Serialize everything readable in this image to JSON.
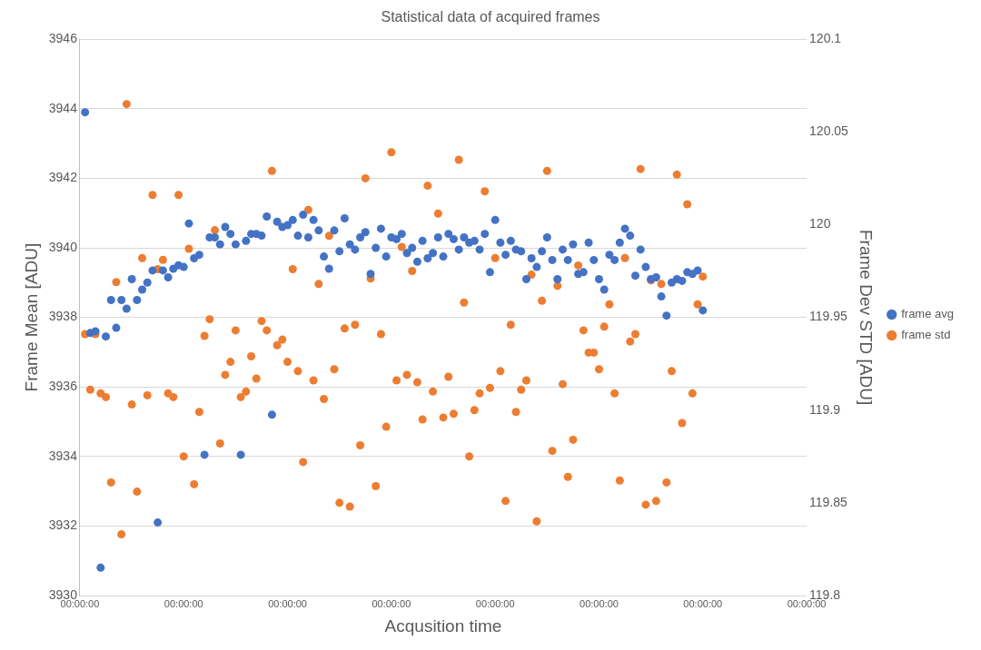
{
  "chart_data": {
    "type": "scatter",
    "title": "Statistical data of acquired frames",
    "xlabel": "Acqusition time",
    "ylabel": "Frame Mean [ADU]",
    "y2label": "Frame Dev STD [ADU]",
    "categories": [
      "00:00:00",
      null,
      null,
      null,
      null,
      null,
      null,
      null,
      null,
      null,
      null,
      null,
      null,
      null,
      null,
      null,
      null,
      null,
      null,
      null,
      "00:00:00",
      null,
      null,
      null,
      null,
      null,
      null,
      null,
      null,
      null,
      null,
      null,
      null,
      null,
      null,
      null,
      null,
      null,
      null,
      null,
      "00:00:00",
      null,
      null,
      null,
      null,
      null,
      null,
      null,
      null,
      null,
      null,
      null,
      null,
      null,
      null,
      null,
      null,
      null,
      null,
      null,
      "00:00:00",
      null,
      null,
      null,
      null,
      null,
      null,
      null,
      null,
      null,
      null,
      null,
      null,
      null,
      null,
      null,
      null,
      null,
      null,
      null,
      "00:00:00",
      null,
      null,
      null,
      null,
      null,
      null,
      null,
      null,
      null,
      null,
      null,
      null,
      null,
      null,
      null,
      null,
      null,
      null,
      null,
      "00:00:00",
      null,
      null,
      null,
      null,
      null,
      null,
      null,
      null,
      null,
      null,
      null,
      null,
      null,
      null,
      null,
      null,
      null,
      null,
      null,
      "00:00:00",
      null,
      null,
      null,
      null,
      null,
      null,
      null,
      null,
      null,
      null,
      null,
      null,
      null,
      null,
      null,
      null,
      null,
      null,
      null,
      "00:00:00"
    ],
    "series": [
      {
        "name": "frame avg",
        "color": "#4472c4",
        "values": [
          null,
          3943.9,
          3937.55,
          3937.6,
          3930.8,
          3937.45,
          3938.5,
          3937.7,
          3938.5,
          3938.25,
          3939.1,
          3938.5,
          3938.8,
          3939.0,
          3939.35,
          3932.1,
          3939.35,
          3939.15,
          3939.4,
          3939.5,
          3939.45,
          3940.7,
          3939.7,
          3939.8,
          3934.05,
          3940.3,
          3940.3,
          3940.1,
          3940.6,
          3940.4,
          3940.1,
          3934.05,
          3940.2,
          3940.4,
          3940.4,
          3940.35,
          3940.9,
          3935.2,
          3940.75,
          3940.6,
          3940.65,
          3940.8,
          3940.35,
          3940.95,
          3940.3,
          3940.8,
          3940.5,
          3939.75,
          3939.4,
          3940.5,
          3939.9,
          3940.85,
          3940.1,
          3939.95,
          3940.3,
          3940.45,
          3939.25,
          3940.0,
          3940.55,
          3939.75,
          3940.3,
          3940.25,
          3940.4,
          3939.85,
          3940.0,
          3939.6,
          3940.2,
          3939.7,
          3939.85,
          3940.3,
          3939.75,
          3940.4,
          3940.25,
          3939.95,
          3940.3,
          3940.15,
          3940.2,
          3939.95,
          3940.4,
          3939.3,
          3940.8,
          3940.15,
          3939.8,
          3940.2,
          3939.95,
          3939.9,
          3939.1,
          3939.7,
          3939.45,
          3939.9,
          3940.3,
          3939.65,
          3939.1,
          3939.95,
          3939.65,
          3940.1,
          3939.25,
          3939.3,
          3940.15,
          3939.65,
          3939.1,
          3938.8,
          3939.8,
          3939.65,
          3940.15,
          3940.55,
          3940.35,
          3939.2,
          3939.95,
          3939.45,
          3939.1,
          3939.15,
          3938.6,
          3938.05,
          3939.0,
          3939.1,
          3939.05,
          3939.3,
          3939.25,
          3939.35,
          3938.2,
          null,
          null,
          null,
          null,
          null,
          null,
          null,
          null,
          null,
          null,
          null,
          null,
          null,
          null,
          null,
          null,
          null,
          null,
          null,
          null
        ]
      },
      {
        "name": "frame std",
        "color": "#ed7d31",
        "axis": "y2",
        "values": [
          null,
          119.941,
          119.911,
          119.941,
          119.909,
          119.907,
          119.861,
          119.969,
          119.833,
          120.065,
          119.903,
          119.856,
          119.982,
          119.908,
          120.016,
          119.976,
          119.981,
          119.909,
          119.907,
          120.016,
          119.875,
          119.987,
          119.86,
          119.899,
          119.94,
          119.949,
          119.997,
          119.882,
          119.919,
          119.926,
          119.943,
          119.907,
          119.91,
          119.929,
          119.917,
          119.948,
          119.943,
          120.029,
          119.935,
          119.938,
          119.926,
          119.976,
          119.921,
          119.872,
          120.008,
          119.916,
          119.968,
          119.906,
          119.994,
          119.922,
          119.85,
          119.944,
          119.848,
          119.946,
          119.881,
          120.025,
          119.971,
          119.859,
          119.941,
          119.891,
          120.039,
          119.916,
          119.988,
          119.919,
          119.975,
          119.915,
          119.895,
          120.021,
          119.91,
          120.006,
          119.896,
          119.918,
          119.898,
          120.035,
          119.958,
          119.875,
          119.9,
          119.909,
          120.018,
          119.912,
          119.982,
          119.921,
          119.851,
          119.946,
          119.899,
          119.911,
          119.916,
          119.973,
          119.84,
          119.959,
          120.029,
          119.878,
          119.967,
          119.914,
          119.864,
          119.884,
          119.978,
          119.943,
          119.931,
          119.931,
          119.922,
          119.945,
          119.957,
          119.909,
          119.862,
          119.982,
          119.937,
          119.941,
          120.03,
          119.849,
          119.97,
          119.851,
          119.968,
          119.861,
          119.921,
          120.027,
          119.893,
          120.011,
          119.909,
          119.957,
          119.972,
          null,
          null,
          null,
          null,
          null,
          null,
          null,
          null,
          null,
          null,
          null,
          null,
          null,
          null,
          null,
          null,
          null,
          null,
          null,
          null
        ]
      }
    ],
    "ylim": [
      3930,
      3946
    ],
    "yticks": [
      3930,
      3932,
      3934,
      3936,
      3938,
      3940,
      3942,
      3944,
      3946
    ],
    "y2lim": [
      119.8,
      120.1
    ],
    "y2ticks": [
      119.8,
      119.85,
      119.9,
      119.95,
      120,
      120.05,
      120.1
    ],
    "grid": "y",
    "legend": "right",
    "marker": "circle"
  }
}
